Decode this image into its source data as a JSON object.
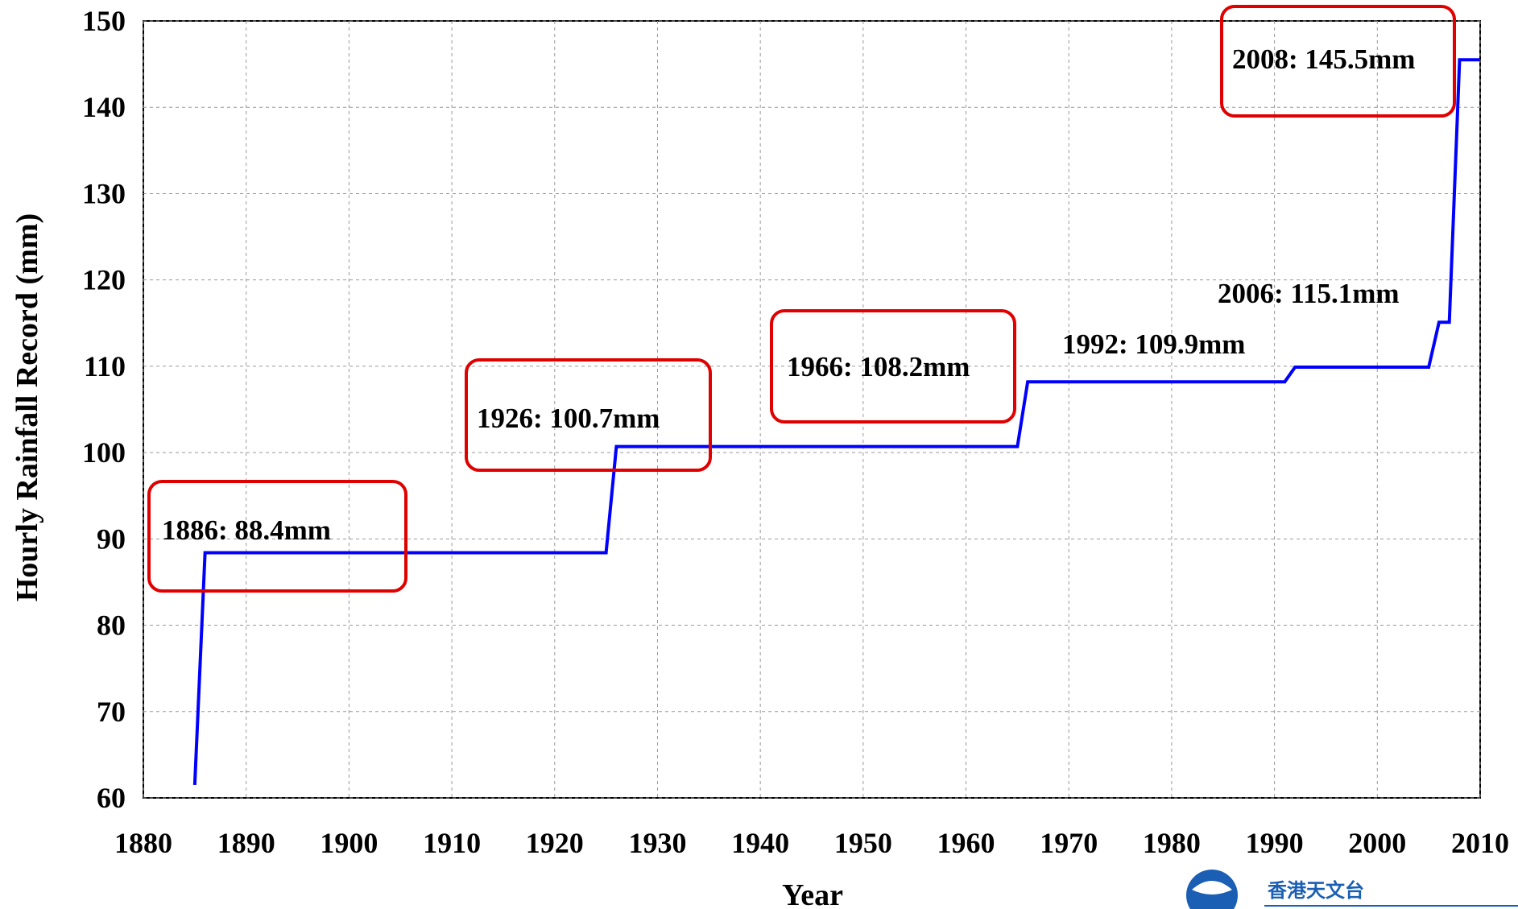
{
  "chart_data": {
    "type": "line",
    "xlabel": "Year",
    "ylabel": "Hourly Rainfall Record (mm)",
    "series": [
      {
        "name": "Hourly Rainfall Record",
        "color": "#0000ff",
        "x": [
          1885,
          1886,
          1925,
          1926,
          1965,
          1966,
          1991,
          1992,
          2005,
          2006,
          2007,
          2008,
          2010
        ],
        "values": [
          61.5,
          88.4,
          88.4,
          100.7,
          100.7,
          108.2,
          108.2,
          109.9,
          109.9,
          115.1,
          115.1,
          145.5,
          145.5
        ]
      }
    ],
    "xlim": [
      1880,
      2010
    ],
    "xticks": [
      1880,
      1890,
      1900,
      1910,
      1920,
      1930,
      1940,
      1950,
      1960,
      1970,
      1980,
      1990,
      2000,
      2010
    ],
    "ylim": [
      60,
      150
    ],
    "yticks": [
      60,
      70,
      80,
      90,
      100,
      110,
      120,
      130,
      140,
      150
    ],
    "grid": true,
    "annotations": [
      {
        "text": "1886: 88.4mm",
        "boxed": true
      },
      {
        "text": "1926: 100.7mm",
        "boxed": true
      },
      {
        "text": "1966: 108.2mm",
        "boxed": true
      },
      {
        "text": "1992: 109.9mm",
        "boxed": false
      },
      {
        "text": "2006: 115.1mm",
        "boxed": false
      },
      {
        "text": "2008: 145.5mm",
        "boxed": true
      }
    ],
    "logo_text": "香港天文台"
  }
}
